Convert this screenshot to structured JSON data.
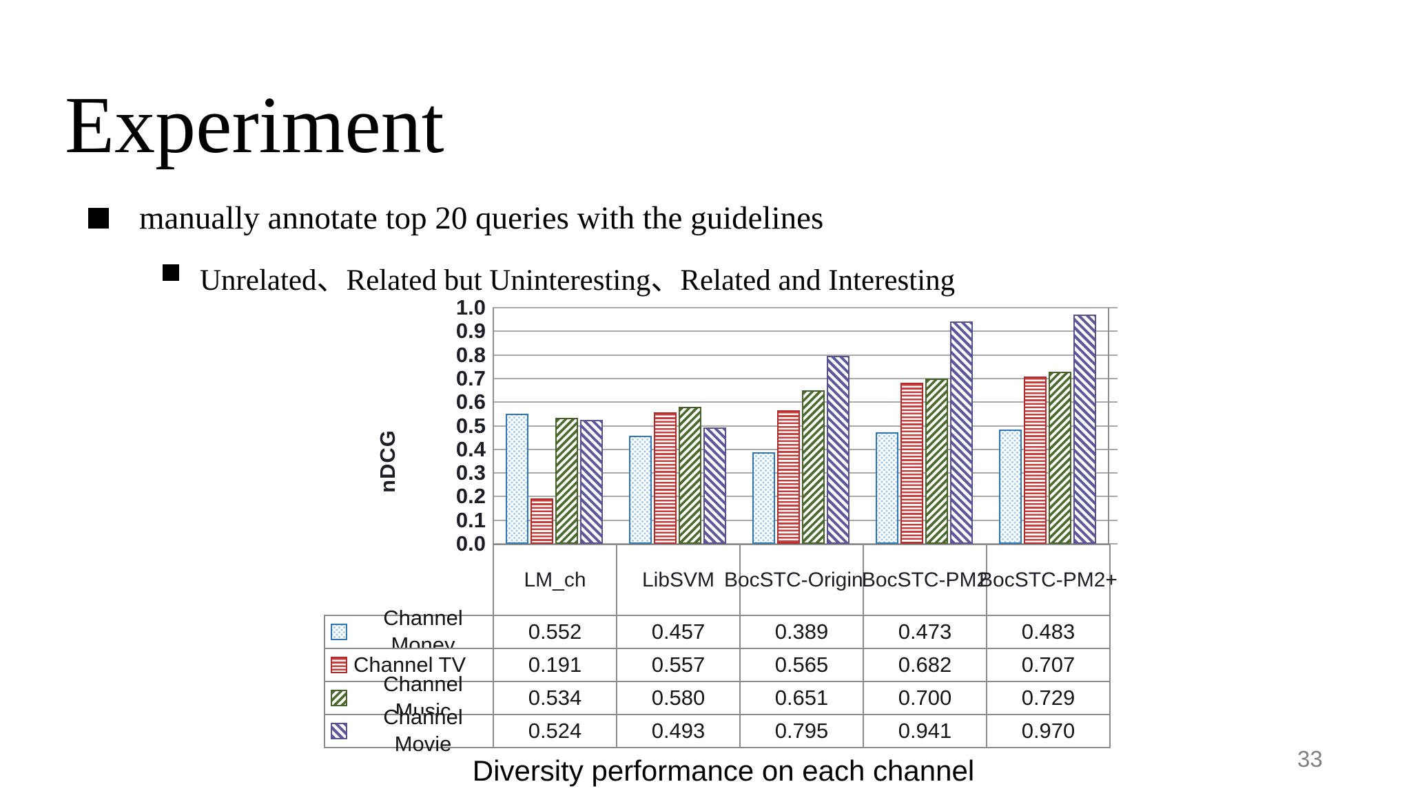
{
  "slide": {
    "title": "Experiment",
    "bullets": [
      {
        "level": 1,
        "text": "manually annotate top 20 queries with the guidelines"
      },
      {
        "level": 2,
        "text": "Unrelated、Related but Uninteresting、Related and Interesting"
      }
    ],
    "caption": "Diversity performance on each channel",
    "page_number": "33"
  },
  "chart_data": {
    "type": "bar",
    "title": "Diversity performance on each channel",
    "ylabel": "nDCG",
    "ylim": [
      0.0,
      1.0
    ],
    "ytick_step": 0.1,
    "ytick_labels": [
      "0.0",
      "0.1",
      "0.2",
      "0.3",
      "0.4",
      "0.5",
      "0.6",
      "0.7",
      "0.8",
      "0.9",
      "1.0"
    ],
    "grid": true,
    "legend_position": "left-of-table-rows",
    "categories": [
      "LM_ch",
      "LibSVM",
      "BocSTC-Original",
      "BocSTC-PM2",
      "BocSTC-PM2+"
    ],
    "category_label_lines": [
      [
        "LM_ch"
      ],
      [
        "LibSVM"
      ],
      [
        "BocSTC-",
        "Original"
      ],
      [
        "BocSTC-",
        "PM2"
      ],
      [
        "BocSTC-",
        "PM2+"
      ]
    ],
    "series": [
      {
        "name": "Channel Money",
        "pattern": "dots",
        "border_color": "#2E75B6",
        "fill_color": "#A9CCEA",
        "values": [
          0.552,
          0.457,
          0.389,
          0.473,
          0.483
        ]
      },
      {
        "name": "Channel TV",
        "pattern": "horizontal-stripes",
        "border_color": "#B02B2B",
        "fill_color": "#C83C3C",
        "values": [
          0.191,
          0.557,
          0.565,
          0.682,
          0.707
        ]
      },
      {
        "name": "Channel Music",
        "pattern": "diagonal-up-stripes",
        "border_color": "#46602B",
        "fill_color": "#4D6A2F",
        "values": [
          0.534,
          0.58,
          0.651,
          0.7,
          0.729
        ]
      },
      {
        "name": "Channel Movie",
        "pattern": "diagonal-down-stripes",
        "border_color": "#57518F",
        "fill_color": "#5D579B",
        "values": [
          0.524,
          0.493,
          0.795,
          0.941,
          0.97
        ]
      }
    ]
  }
}
